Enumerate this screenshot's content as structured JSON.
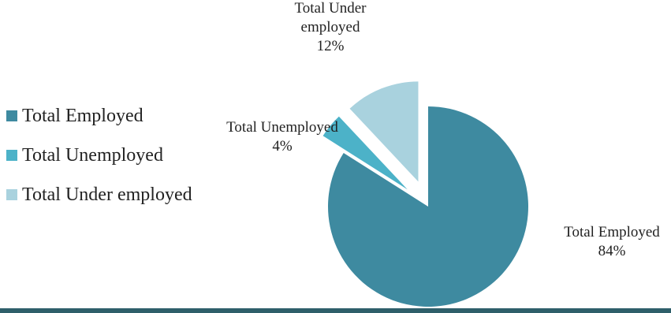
{
  "chart_data": {
    "type": "pie",
    "title": "",
    "slices": [
      {
        "label": "Total Employed",
        "value": 84,
        "data_label": "84%",
        "color": "#3e8aa0",
        "exploded": false
      },
      {
        "label": "Total Unemployed",
        "value": 4,
        "data_label": "4%",
        "color": "#4cb2c8",
        "exploded": true
      },
      {
        "label": "Total Under employed",
        "value": 12,
        "data_label": "12%",
        "color": "#a9d2de",
        "exploded": true
      }
    ],
    "legend_position": "left",
    "legend": [
      {
        "label": "Total Employed",
        "color": "#3e8aa0"
      },
      {
        "label": "Total Unemployed",
        "color": "#4cb2c8"
      },
      {
        "label": "Total Under employed",
        "color": "#a9d2de"
      }
    ]
  },
  "footer": {
    "rule_color": "#2e5f6a"
  }
}
